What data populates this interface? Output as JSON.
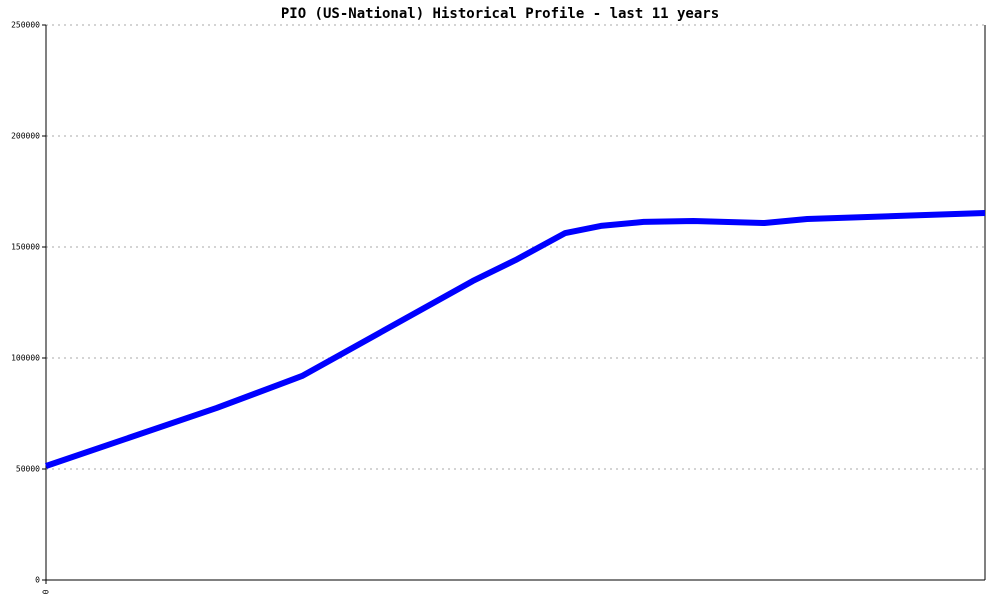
{
  "chart_data": {
    "type": "line",
    "title": "PIO (US-National) Historical Profile - last 11 years",
    "x": [
      0,
      24,
      36,
      60,
      66,
      73,
      78,
      84,
      91,
      101,
      107,
      120,
      132
    ],
    "series": [
      {
        "color": "#0000ff",
        "values": [
          51350,
          77500,
          91900,
          134700,
          144100,
          156300,
          159500,
          161300,
          161700,
          160800,
          162600,
          164000,
          165300
        ]
      }
    ],
    "xlim": [
      0,
      132
    ],
    "xticks": [
      0
    ],
    "ylim": [
      0,
      250000
    ],
    "yticks": [
      0,
      50000,
      100000,
      150000,
      200000,
      250000
    ],
    "grid": true
  }
}
